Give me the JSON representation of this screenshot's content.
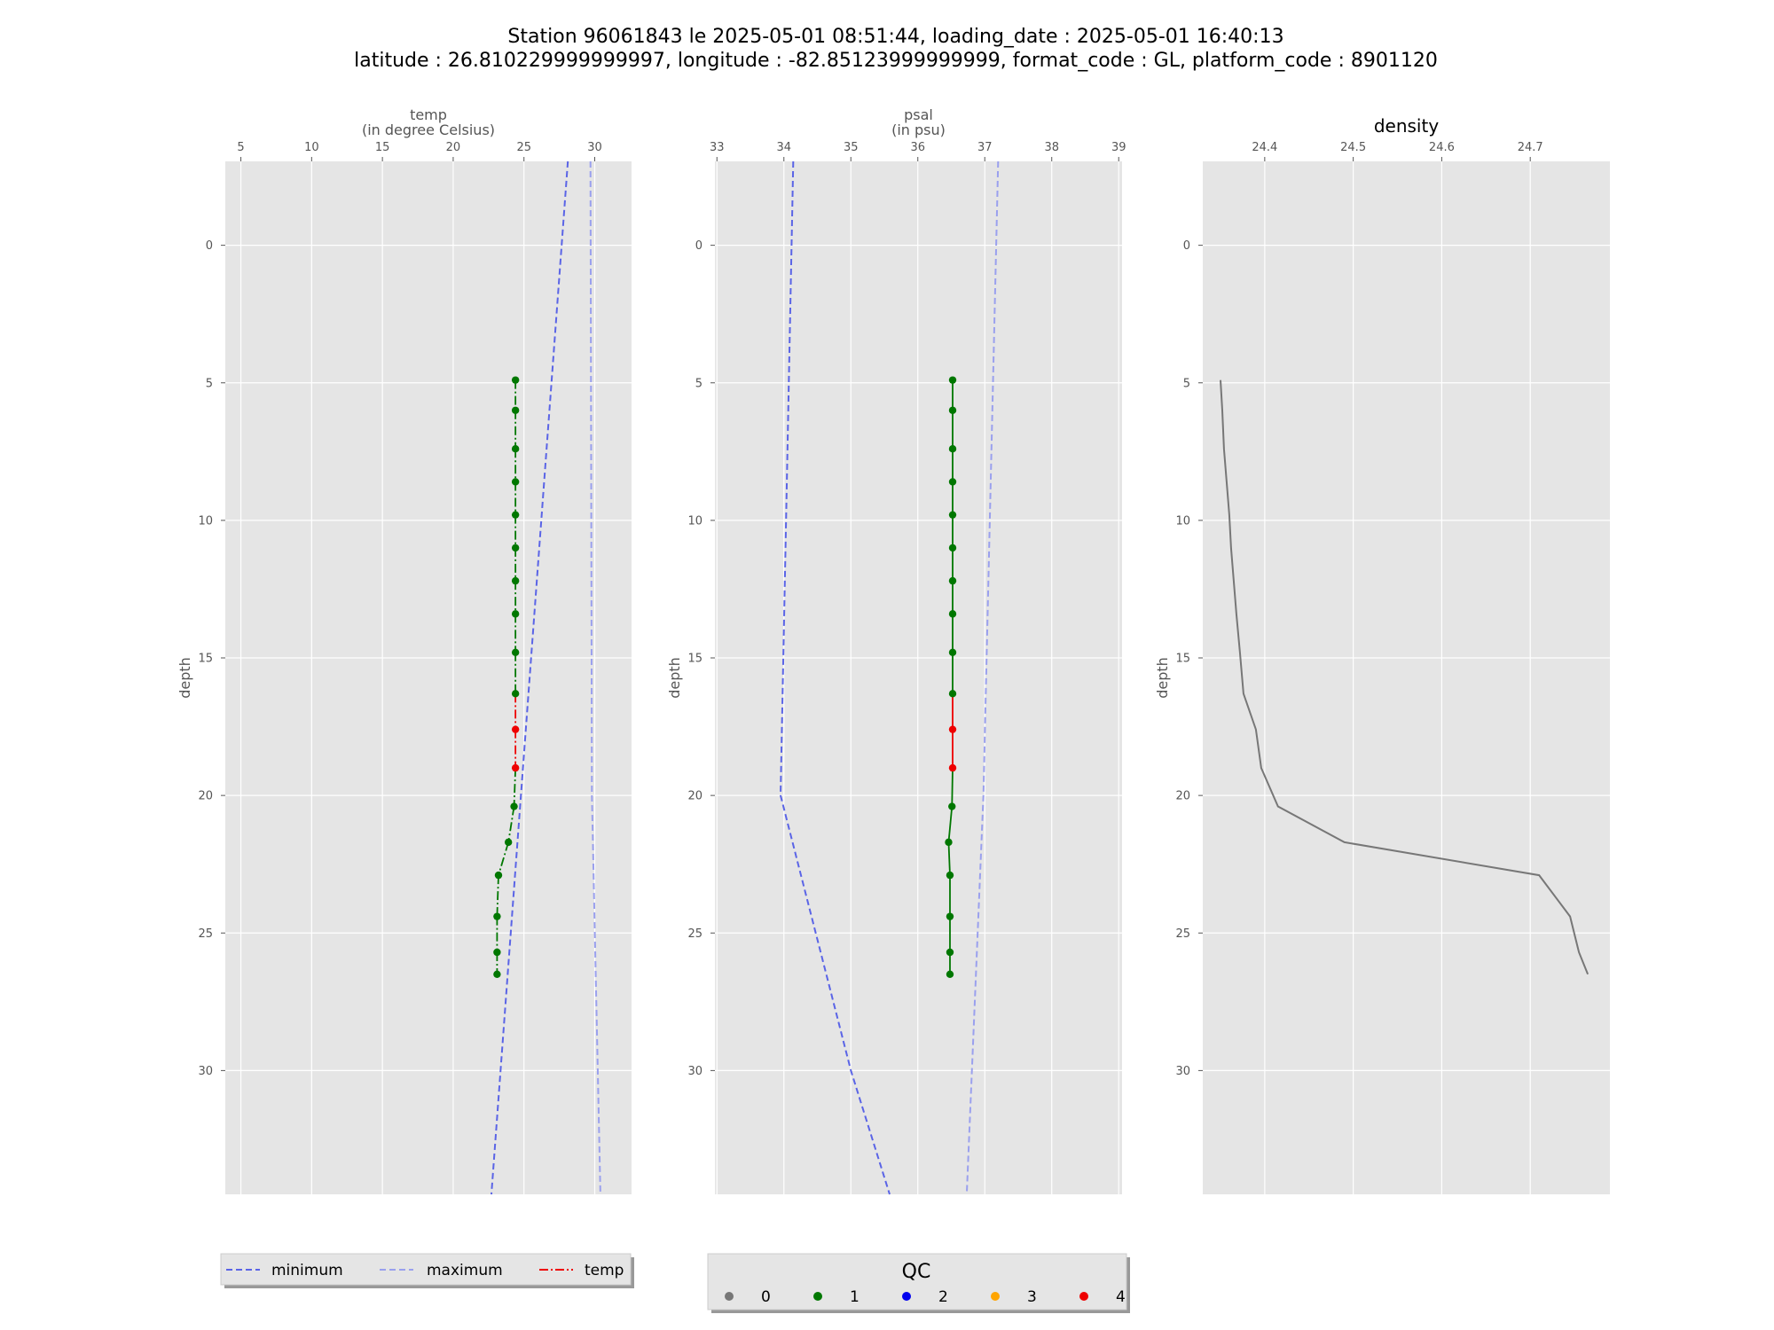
{
  "title": {
    "line1": "Station 96061843 le 2025-05-01 08:51:44, loading_date : 2025-05-01 16:40:13",
    "line2": "latitude : 26.810229999999997, longitude : -82.85123999999999, format_code : GL, platform_code : 8901120"
  },
  "colors": {
    "panel_bg": "#e5e5e5",
    "grid": "#ffffff",
    "minimum": "#5a64e6",
    "maximum": "#9aa0ee",
    "profile_line": "#007700",
    "density_line": "#777777",
    "qc0": "#777777",
    "qc1": "#007700",
    "qc2": "#0000ee",
    "qc3": "#ffa500",
    "qc4": "#ee0000"
  },
  "chart_data": [
    {
      "type": "line",
      "xlabel": "temp",
      "xlabel2": "(in degree Celsius)",
      "ylabel": "depth",
      "xlim": [
        3.9,
        32.6
      ],
      "ylim": [
        34.5,
        -3.05
      ],
      "xticks": [
        5,
        10,
        15,
        20,
        25,
        30
      ],
      "yticks": [
        0,
        5,
        10,
        15,
        20,
        25,
        30
      ],
      "minimum": {
        "x": [
          28.1,
          22.7
        ],
        "y": [
          -3.05,
          34.5
        ]
      },
      "maximum": {
        "x": [
          29.7,
          29.8,
          30.4
        ],
        "y": [
          -3.05,
          20,
          34.5
        ]
      },
      "profile": {
        "depth": [
          4.9,
          6.0,
          7.4,
          8.6,
          9.8,
          11.0,
          12.2,
          13.4,
          14.8,
          16.3,
          17.6,
          19.0,
          20.4,
          21.7,
          22.9,
          24.4,
          25.7,
          26.5
        ],
        "values": [
          24.4,
          24.4,
          24.4,
          24.4,
          24.4,
          24.4,
          24.4,
          24.4,
          24.4,
          24.4,
          24.4,
          24.4,
          24.3,
          23.9,
          23.2,
          23.1,
          23.1,
          23.1
        ],
        "qc": [
          1,
          1,
          1,
          1,
          1,
          1,
          1,
          1,
          1,
          1,
          4,
          4,
          1,
          1,
          1,
          1,
          1,
          1
        ]
      }
    },
    {
      "type": "line",
      "xlabel": "psal",
      "xlabel2": "(in psu)",
      "ylabel": "depth",
      "xlim": [
        32.97,
        39.05
      ],
      "ylim": [
        34.5,
        -3.05
      ],
      "xticks": [
        33,
        34,
        35,
        36,
        37,
        38,
        39
      ],
      "yticks": [
        0,
        5,
        10,
        15,
        20,
        25,
        30
      ],
      "minimum": {
        "x": [
          34.14,
          33.95,
          35.0,
          35.58
        ],
        "y": [
          -3.05,
          20,
          30,
          34.5
        ]
      },
      "maximum": {
        "x": [
          37.2,
          36.98,
          36.73
        ],
        "y": [
          -3.05,
          20,
          34.5
        ]
      },
      "profile": {
        "depth": [
          4.9,
          6.0,
          7.4,
          8.6,
          9.8,
          11.0,
          12.2,
          13.4,
          14.8,
          16.3,
          17.6,
          19.0,
          20.4,
          21.7,
          22.9,
          24.4,
          25.7,
          26.5
        ],
        "values": [
          36.52,
          36.52,
          36.52,
          36.52,
          36.52,
          36.52,
          36.52,
          36.52,
          36.52,
          36.52,
          36.52,
          36.52,
          36.51,
          36.46,
          36.48,
          36.48,
          36.48,
          36.48
        ],
        "qc": [
          1,
          1,
          1,
          1,
          1,
          1,
          1,
          1,
          1,
          1,
          4,
          4,
          1,
          1,
          1,
          1,
          1,
          1
        ]
      }
    },
    {
      "type": "line",
      "title": "density",
      "ylabel": "depth",
      "xlim": [
        24.33,
        24.79
      ],
      "ylim": [
        34.5,
        -3.05
      ],
      "xticks": [
        24.4,
        24.5,
        24.6,
        24.7
      ],
      "yticks": [
        0,
        5,
        10,
        15,
        20,
        25,
        30
      ],
      "profile": {
        "depth": [
          4.9,
          6.0,
          7.4,
          8.6,
          9.8,
          11.0,
          12.2,
          13.4,
          14.8,
          16.3,
          17.6,
          19.0,
          20.4,
          21.7,
          22.9,
          24.4,
          25.7,
          26.5
        ],
        "values": [
          24.35,
          24.352,
          24.354,
          24.357,
          24.36,
          24.362,
          24.365,
          24.368,
          24.372,
          24.376,
          24.39,
          24.396,
          24.415,
          24.49,
          24.71,
          24.745,
          24.755,
          24.765
        ]
      }
    }
  ],
  "legend": {
    "minimum": "minimum",
    "maximum": "maximum",
    "profile": "temp"
  },
  "qc_legend": {
    "title": "QC",
    "items": [
      {
        "label": "0",
        "color_key": "qc0"
      },
      {
        "label": "1",
        "color_key": "qc1"
      },
      {
        "label": "2",
        "color_key": "qc2"
      },
      {
        "label": "3",
        "color_key": "qc3"
      },
      {
        "label": "4",
        "color_key": "qc4"
      }
    ]
  }
}
